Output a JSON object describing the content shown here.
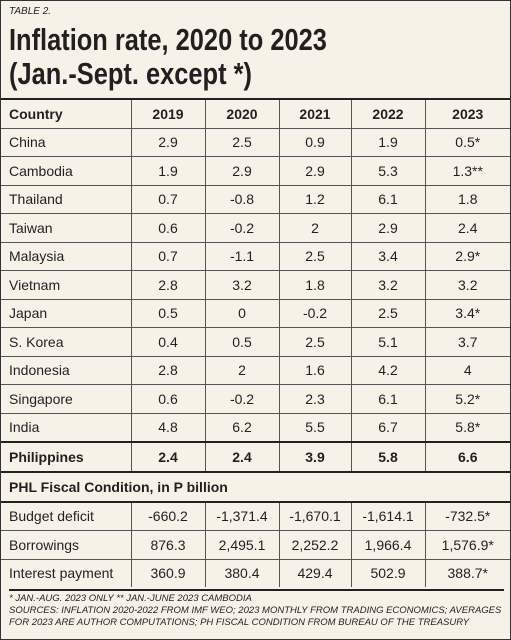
{
  "header": {
    "label": "TABLE 2.",
    "title": [
      "Inflation rate, 2020 to 2023",
      "(Jan.-Sept. except *)"
    ]
  },
  "table": {
    "columns": [
      "Country",
      "2019",
      "2020",
      "2021",
      "2022",
      "2023"
    ],
    "rows": [
      [
        "China",
        "2.9",
        "2.5",
        "0.9",
        "1.9",
        "0.5*"
      ],
      [
        "Cambodia",
        "1.9",
        "2.9",
        "2.9",
        "5.3",
        "1.3**"
      ],
      [
        "Thailand",
        "0.7",
        "-0.8",
        "1.2",
        "6.1",
        "1.8"
      ],
      [
        "Taiwan",
        "0.6",
        "-0.2",
        "2",
        "2.9",
        "2.4"
      ],
      [
        "Malaysia",
        "0.7",
        "-1.1",
        "2.5",
        "3.4",
        "2.9*"
      ],
      [
        "Vietnam",
        "2.8",
        "3.2",
        "1.8",
        "3.2",
        "3.2"
      ],
      [
        "Japan",
        "0.5",
        "0",
        "-0.2",
        "2.5",
        "3.4*"
      ],
      [
        "S. Korea",
        "0.4",
        "0.5",
        "2.5",
        "5.1",
        "3.7"
      ],
      [
        "Indonesia",
        "2.8",
        "2",
        "1.6",
        "4.2",
        "4"
      ],
      [
        "Singapore",
        "0.6",
        "-0.2",
        "2.3",
        "6.1",
        "5.2*"
      ],
      [
        "India",
        "4.8",
        "6.2",
        "5.5",
        "6.7",
        "5.8*"
      ],
      [
        "Philippines",
        "2.4",
        "2.4",
        "3.9",
        "5.8",
        "6.6"
      ]
    ]
  },
  "fiscal": {
    "title": "PHL Fiscal Condition, in P billion",
    "rows": [
      [
        "Budget deficit",
        "-660.2",
        "-1,371.4",
        "-1,670.1",
        "-1,614.1",
        "-732.5*"
      ],
      [
        "Borrowings",
        "876.3",
        "2,495.1",
        "2,252.2",
        "1,966.4",
        "1,576.9*"
      ],
      [
        "Interest payment",
        "360.9",
        "380.4",
        "429.4",
        "502.9",
        "388.7*"
      ]
    ]
  },
  "notes": [
    "* JAN.-AUG. 2023 ONLY ** JAN.-JUNE 2023 CAMBODIA",
    "SOURCES: INFLATION 2020-2022 FROM IMF WEO; 2023 MONTHLY FROM TRADING ECONOMICS; AVERAGES FOR 2023 ARE AUTHOR COMPUTATIONS; PH FISCAL CONDITION FROM BUREAU OF THE TREASURY"
  ]
}
